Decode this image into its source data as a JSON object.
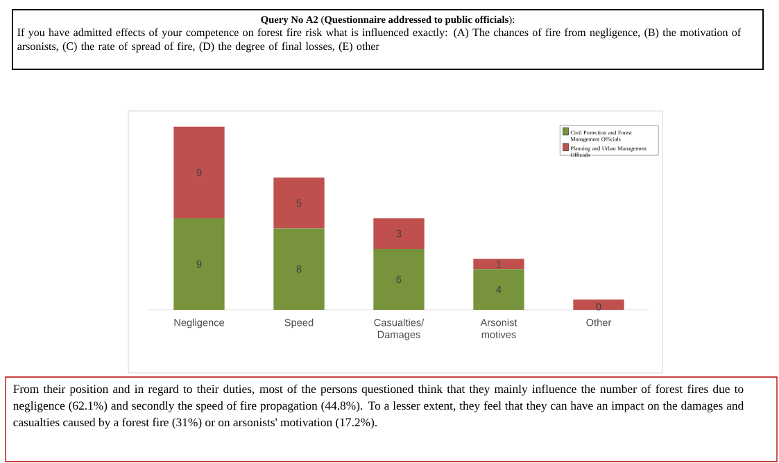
{
  "chart_data": {
    "type": "bar",
    "stacked": true,
    "title": "**Query No A2** (**Questionnaire addressed to public officials**):",
    "subtitle": "If you have admitted effects of your competence on forest fire risk what is influenced exactly: (A) The chances of fire from negligence, (B) the motivation of arsonists, (C) the rate of spread of fire, (D) the degree of final losses, (E) other",
    "categories": [
      "Negligence",
      "Speed",
      "Casualties/ Damages",
      "Arsonist motives",
      "Other"
    ],
    "series": [
      {
        "name": "Civil Protection and Forest Management Officials",
        "color": "#77933c",
        "values": [
          9,
          8,
          6,
          4,
          0
        ],
        "value_labels": [
          "9",
          "8",
          "6",
          "4",
          "0"
        ]
      },
      {
        "name": "Planning and Urban Management Officials",
        "color": "#c0504d",
        "values": [
          9,
          5,
          3,
          1,
          1
        ],
        "value_labels": [
          "9",
          "5",
          "3",
          "1",
          null
        ]
      }
    ],
    "legend": "top right",
    "annotations": [
      "From their position and in regard to their duties, most of the persons questioned think that they mainly influence the number of forest fires due to negligence (62.1%) and secondly the speed of fire propagation (44.8%). To a lesser extent, they feel that they can have an impact on the damages and casualties caused by a forest fire (31%) or on arsonists' motivation (17.2%)."
    ]
  }
}
